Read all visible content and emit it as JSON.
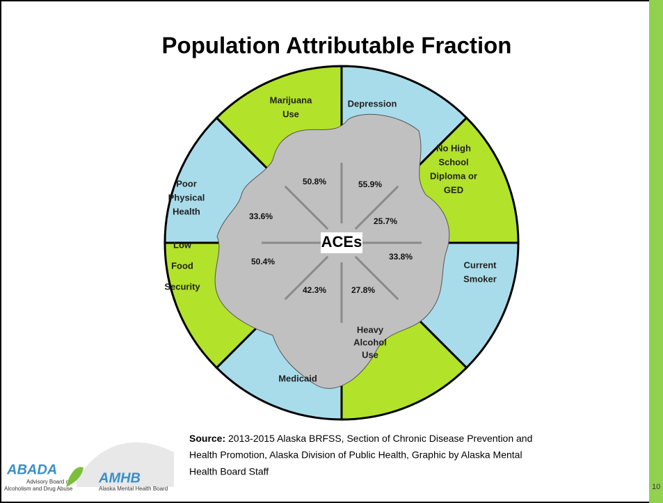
{
  "title": "Population Attributable Fraction",
  "center": "ACEs",
  "sectors": [
    {
      "label": [
        "Depression"
      ],
      "pct": "55.9%"
    },
    {
      "label": [
        "No High",
        "School",
        "Diploma or",
        "GED"
      ],
      "pct": "25.7%"
    },
    {
      "label": [
        "Current",
        "Smoker"
      ],
      "pct": "33.8%"
    },
    {
      "label": [
        "Heavy",
        "Alcohol",
        "Use"
      ],
      "pct": "27.8%"
    },
    {
      "label": [
        "Medicaid"
      ],
      "pct": "42.3%"
    },
    {
      "label": [
        "Low",
        "Food",
        "Security"
      ],
      "pct": "50.4%"
    },
    {
      "label": [
        "Poor",
        "Physical",
        "Health"
      ],
      "pct": "33.6%"
    },
    {
      "label": [
        "Marijuana",
        "Use"
      ],
      "pct": "50.8%"
    }
  ],
  "source": {
    "head": "Source:",
    "lines": [
      " 2013-2015 Alaska BRFSS, Section of Chronic Disease Prevention and",
      "Health Promotion, Alaska Division of Public Health, Graphic by Alaska Mental",
      "Health Board Staff"
    ]
  },
  "logos": {
    "abada": "ABADA",
    "abada_sub": [
      "Advisory Board on",
      "Alcoholism and Drug Abuse"
    ],
    "amhb": "AMHB",
    "amhb_sub": "Alaska Mental Health Board"
  },
  "page_number": "10"
}
